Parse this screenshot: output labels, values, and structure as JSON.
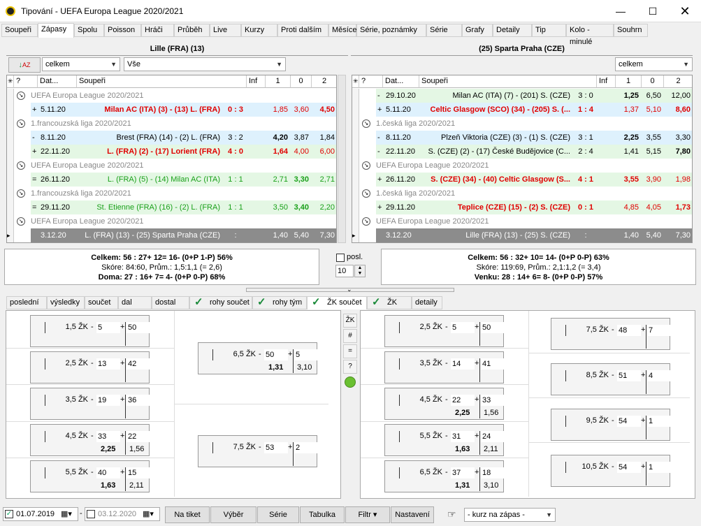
{
  "window": {
    "title": "Tipování - UEFA Europa League 2020/2021"
  },
  "tabs": [
    "Soupeři",
    "Zápasy",
    "Spolu",
    "Poisson",
    "Hráči",
    "Průběh",
    "Live",
    "Kurzy",
    "Proti dalším",
    "Měsíce",
    "Série, poznámky",
    "Série",
    "Grafy",
    "Detaily",
    "Tip",
    "Kolo - minulé",
    "Souhrn"
  ],
  "left": {
    "team_header": "Lille (FRA) (13)",
    "filter1": "celkem",
    "filter2": "Vše",
    "cols": [
      "Dat...",
      "Soupeři",
      "Inf",
      "1",
      "0",
      "2"
    ],
    "rows": [
      {
        "type": "grp",
        "text": "UEFA Europa League 2020/2021"
      },
      {
        "type": "match",
        "cls": "blue",
        "sign": "+",
        "date": "5.11.20",
        "teams": "Milan AC (ITA) (3) - (13) L. (FRA)",
        "score": "0 : 3",
        "o1": "1,85",
        "o0": "3,60",
        "o2": "4,50",
        "tc": "red",
        "b": 2
      },
      {
        "type": "grp",
        "text": "1.francouzská liga 2020/2021"
      },
      {
        "type": "match",
        "cls": "blue",
        "sign": "-",
        "date": "8.11.20",
        "teams": "Brest (FRA) (14) - (2) L. (FRA)",
        "score": "3 : 2",
        "o1": "4,20",
        "o0": "3,87",
        "o2": "1,84",
        "tc": "",
        "b": 0
      },
      {
        "type": "match",
        "cls": "green",
        "sign": "+",
        "date": "22.11.20",
        "teams": "L. (FRA) (2) - (17) Lorient (FRA)",
        "score": "4 : 0",
        "o1": "1,64",
        "o0": "4,00",
        "o2": "6,00",
        "tc": "red",
        "b": 0
      },
      {
        "type": "grp",
        "text": "UEFA Europa League 2020/2021"
      },
      {
        "type": "match",
        "cls": "green",
        "sign": "=",
        "date": "26.11.20",
        "teams": "L. (FRA) (5) - (14) Milan AC (ITA)",
        "score": "1 : 1",
        "o1": "2,71",
        "o0": "3,30",
        "o2": "2,71",
        "tc": "gtxt",
        "b": 1
      },
      {
        "type": "grp",
        "text": "1.francouzská liga 2020/2021"
      },
      {
        "type": "match",
        "cls": "green",
        "sign": "=",
        "date": "29.11.20",
        "teams": "St. Etienne (FRA) (16) - (2) L. (FRA)",
        "score": "1 : 1",
        "o1": "3,50",
        "o0": "3,40",
        "o2": "2,20",
        "tc": "gtxt",
        "b": 1
      },
      {
        "type": "grp",
        "text": "UEFA Europa League 2020/2021"
      },
      {
        "type": "match",
        "cls": "gray",
        "sign": "",
        "date": "3.12.20",
        "teams": "L. (FRA) (13) - (25) Sparta Praha (CZE)",
        "score": ":",
        "o1": "1,40",
        "o0": "5,40",
        "o2": "7,30",
        "tc": "",
        "b": -1
      }
    ],
    "stats": [
      "Celkem: 56 : 27+  12=  16- (0+P  1-P)  56%",
      "Skóre: 84:60, Prům.: 1,5:1,1 (= 2,6)",
      "Doma: 27 : 16+  7=  4- (0+P  0-P)  68%"
    ]
  },
  "right": {
    "team_header": "(25) Sparta Praha (CZE)",
    "filter1": "celkem",
    "cols": [
      "Dat...",
      "Soupeři",
      "Inf",
      "1",
      "0",
      "2"
    ],
    "rows": [
      {
        "type": "match",
        "cls": "green",
        "sign": "-",
        "date": "29.10.20",
        "teams": "Milan AC (ITA) (7) - (201) S. (CZE)",
        "score": "3 : 0",
        "o1": "1,25",
        "o0": "6,50",
        "o2": "12,00",
        "tc": "",
        "b": 0
      },
      {
        "type": "match",
        "cls": "blue",
        "sign": "+",
        "date": "5.11.20",
        "teams": "Celtic Glasgow (SCO) (34) - (205) S. (...",
        "score": "1 : 4",
        "o1": "1,37",
        "o0": "5,10",
        "o2": "8,60",
        "tc": "red",
        "b": 2
      },
      {
        "type": "grp",
        "text": "1.česká liga 2020/2021"
      },
      {
        "type": "match",
        "cls": "blue",
        "sign": "-",
        "date": "8.11.20",
        "teams": "Plzeň Viktoria (CZE) (3) - (1) S. (CZE)",
        "score": "3 : 1",
        "o1": "2,25",
        "o0": "3,55",
        "o2": "3,30",
        "tc": "",
        "b": 0
      },
      {
        "type": "match",
        "cls": "green",
        "sign": "-",
        "date": "22.11.20",
        "teams": "S. (CZE) (2) - (17) České Budějovice (C...",
        "score": "2 : 4",
        "o1": "1,41",
        "o0": "5,15",
        "o2": "7,80",
        "tc": "",
        "b": 2
      },
      {
        "type": "grp",
        "text": "UEFA Europa League 2020/2021"
      },
      {
        "type": "match",
        "cls": "green",
        "sign": "+",
        "date": "26.11.20",
        "teams": "S. (CZE) (34) - (40) Celtic Glasgow (S...",
        "score": "4 : 1",
        "o1": "3,55",
        "o0": "3,90",
        "o2": "1,98",
        "tc": "red",
        "b": 0
      },
      {
        "type": "grp",
        "text": "1.česká liga 2020/2021"
      },
      {
        "type": "match",
        "cls": "green",
        "sign": "+",
        "date": "29.11.20",
        "teams": "Teplice (CZE) (15) - (2) S. (CZE)",
        "score": "0 : 1",
        "o1": "4,85",
        "o0": "4,05",
        "o2": "1,73",
        "tc": "red",
        "b": 2
      },
      {
        "type": "grp",
        "text": "UEFA Europa League 2020/2021"
      },
      {
        "type": "match",
        "cls": "gray",
        "sign": "",
        "date": "3.12.20",
        "teams": "Lille (FRA) (13) - (25) S. (CZE)",
        "score": ":",
        "o1": "1,40",
        "o0": "5,40",
        "o2": "7,30",
        "tc": "",
        "b": -1
      }
    ],
    "stats": [
      "Celkem: 56 : 32+  10=  14- (0+P  0-P)  63%",
      "Skóre: 119:69, Prům.: 2,1:1,2 (= 3,4)",
      "Venku: 28 : 14+  6=  8- (0+P  0-P)  57%"
    ]
  },
  "posl": {
    "label": "posl.",
    "value": "10"
  },
  "tabs2": [
    {
      "t": "poslední",
      "c": false
    },
    {
      "t": "výsledky",
      "c": false
    },
    {
      "t": "součet",
      "c": false
    },
    {
      "t": "dal",
      "c": false
    },
    {
      "t": "dostal",
      "c": false
    },
    {
      "t": "rohy součet",
      "c": true
    },
    {
      "t": "rohy tým",
      "c": true
    },
    {
      "t": "ŽK součet",
      "c": true
    },
    {
      "t": "ŽK tým",
      "c": true
    },
    {
      "t": "detaily",
      "c": false
    }
  ],
  "mid_buttons": [
    "ŽK",
    "#",
    "=",
    "?"
  ],
  "left_boxes": [
    {
      "l": "1,5 ŽK",
      "m": "5",
      "p": "50",
      "om": "",
      "op": ""
    },
    {
      "l": "2,5 ŽK",
      "m": "13",
      "p": "42",
      "om": "",
      "op": ""
    },
    {
      "l": "3,5 ŽK",
      "m": "19",
      "p": "36",
      "om": "",
      "op": ""
    },
    {
      "l": "4,5 ŽK",
      "m": "33",
      "p": "22",
      "om": "2,25",
      "op": "1,56"
    },
    {
      "l": "5,5 ŽK",
      "m": "40",
      "p": "15",
      "om": "1,63",
      "op": "2,11"
    }
  ],
  "left_boxes2": [
    {
      "l": "6,5 ŽK",
      "m": "50",
      "p": "5",
      "om": "1,31",
      "op": "3,10"
    },
    {
      "l": "7,5 ŽK",
      "m": "53",
      "p": "2",
      "om": "",
      "op": ""
    }
  ],
  "right_boxes": [
    {
      "l": "2,5 ŽK",
      "m": "5",
      "p": "50",
      "om": "",
      "op": ""
    },
    {
      "l": "3,5 ŽK",
      "m": "14",
      "p": "41",
      "om": "",
      "op": ""
    },
    {
      "l": "4,5 ŽK",
      "m": "22",
      "p": "33",
      "om": "2,25",
      "op": "1,56"
    },
    {
      "l": "5,5 ŽK",
      "m": "31",
      "p": "24",
      "om": "1,63",
      "op": "2,11"
    },
    {
      "l": "6,5 ŽK",
      "m": "37",
      "p": "18",
      "om": "1,31",
      "op": "3,10"
    }
  ],
  "right_boxes2": [
    {
      "l": "7,5 ŽK",
      "m": "48",
      "p": "7",
      "om": "",
      "op": ""
    },
    {
      "l": "8,5 ŽK",
      "m": "51",
      "p": "4",
      "om": "",
      "op": ""
    },
    {
      "l": "9,5 ŽK",
      "m": "54",
      "p": "1",
      "om": "",
      "op": ""
    },
    {
      "l": "10,5 ŽK",
      "m": "54",
      "p": "1",
      "om": "",
      "op": ""
    }
  ],
  "bottom": {
    "date_from": "01.07.2019",
    "date_to": "03.12.2020",
    "buttons": [
      "Na tiket",
      "Výběr",
      "Série",
      "Tabulka",
      "Filtr",
      "Nastavení"
    ],
    "kurz": "- kurz na zápas -"
  }
}
